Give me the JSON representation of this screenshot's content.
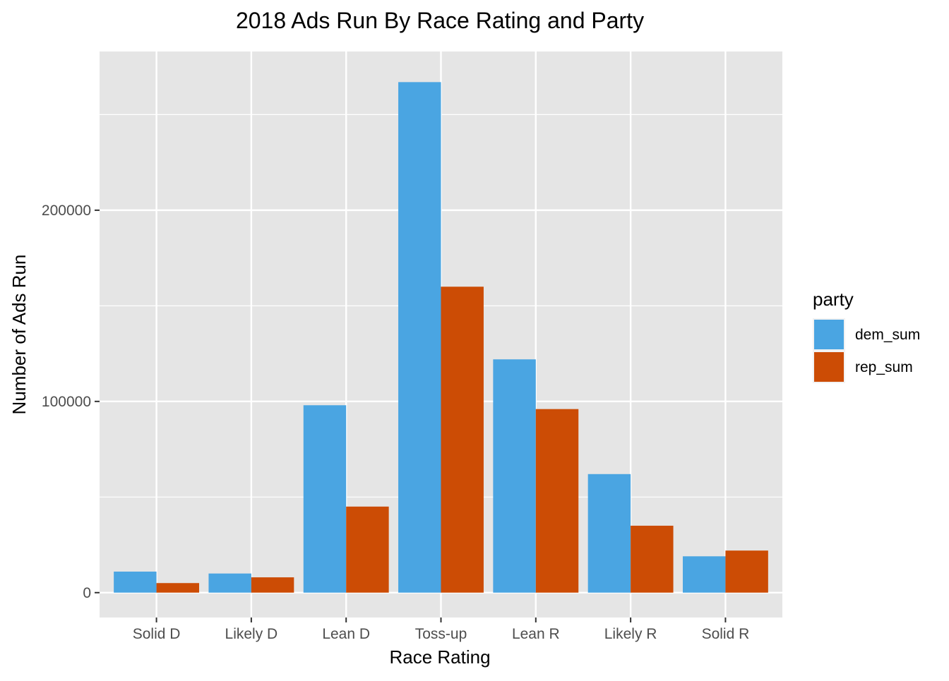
{
  "chart_data": {
    "type": "bar",
    "title": "2018 Ads Run By Race Rating and Party",
    "xlabel": "Race Rating",
    "ylabel": "Number of Ads Run",
    "categories": [
      "Solid D",
      "Likely D",
      "Lean D",
      "Toss-up",
      "Lean R",
      "Likely R",
      "Solid R"
    ],
    "series": [
      {
        "name": "dem_sum",
        "color": "#4aa5e2",
        "values": [
          11000,
          10000,
          98000,
          267000,
          122000,
          62000,
          19000
        ]
      },
      {
        "name": "rep_sum",
        "color": "#cc4c05",
        "values": [
          5000,
          8000,
          45000,
          160000,
          96000,
          35000,
          22000
        ]
      }
    ],
    "ylim": [
      -13000,
      283000
    ],
    "yticks": [
      0,
      100000,
      200000
    ],
    "ytick_labels": [
      "0",
      "100000",
      "200000"
    ],
    "grid": true,
    "panel_background": "#e5e5e5",
    "grid_color": "#ffffff",
    "legend": {
      "title": "party",
      "position": "right"
    }
  }
}
